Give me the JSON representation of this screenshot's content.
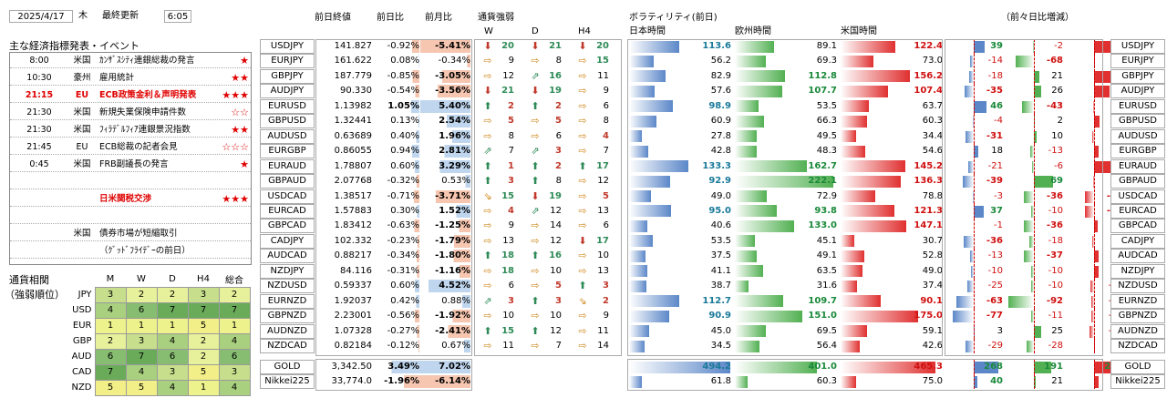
{
  "header": {
    "date": "2025/4/17",
    "weekday": "木",
    "updated_label": "最終更新",
    "time": "6:05"
  },
  "events": {
    "title": "主な経済指標発表・イベント",
    "rows": [
      {
        "time": "8:00",
        "country": "米国",
        "name": "ｶﾝｻﾞｽｼﾃｨ連銀総裁の発言",
        "stars": "★",
        "hl": false
      },
      {
        "time": "10:30",
        "country": "豪州",
        "name": "雇用統計",
        "stars": "★★",
        "hl": false
      },
      {
        "time": "21:15",
        "country": "EU",
        "name": "ECB政策金利＆声明発表",
        "stars": "★★★",
        "hl": true
      },
      {
        "time": "21:30",
        "country": "米国",
        "name": "新規失業保険申請件数",
        "stars": "☆☆",
        "hl": false
      },
      {
        "time": "21:30",
        "country": "米国",
        "name": "ﾌｨﾗﾃﾞﾙﾌｨｱ連銀景況指数",
        "stars": "★★",
        "hl": false
      },
      {
        "time": "21:45",
        "country": "EU",
        "name": "ECB総裁の記者会見",
        "stars": "☆☆☆",
        "hl": false
      },
      {
        "time": "0:45",
        "country": "米国",
        "name": "FRB副議長の発言",
        "stars": "★",
        "hl": false
      },
      {
        "time": "",
        "country": "",
        "name": "",
        "stars": "",
        "hl": false
      },
      {
        "time": "",
        "country": "",
        "name": "日米関税交渉",
        "stars": "★★★",
        "hl": true
      },
      {
        "time": "",
        "country": "",
        "name": "",
        "stars": "",
        "hl": false
      },
      {
        "time": "",
        "country": "米国",
        "name": "債券市場が短縮取引",
        "stars": "",
        "hl": false
      },
      {
        "time": "",
        "country": "",
        "name": "（ｸﾞｯﾄﾞﾌﾗｲﾃﾞｰの前日）",
        "stars": "",
        "hl": false
      }
    ]
  },
  "ranking": {
    "title1": "通貨相関",
    "title2": "（強弱順位）",
    "cols": [
      "M",
      "W",
      "D",
      "H4",
      "総合"
    ],
    "rows": [
      {
        "cur": "JPY",
        "v": [
          "3",
          "2",
          "2",
          "3",
          "2"
        ]
      },
      {
        "cur": "USD",
        "v": [
          "4",
          "6",
          "7",
          "7",
          "7"
        ]
      },
      {
        "cur": "EUR",
        "v": [
          "1",
          "1",
          "1",
          "5",
          "1"
        ]
      },
      {
        "cur": "GBP",
        "v": [
          "2",
          "3",
          "4",
          "2",
          "4"
        ]
      },
      {
        "cur": "AUD",
        "v": [
          "6",
          "7",
          "6",
          "2",
          "6"
        ]
      },
      {
        "cur": "CAD",
        "v": [
          "7",
          "4",
          "3",
          "5",
          "3"
        ]
      },
      {
        "cur": "NZD",
        "v": [
          "5",
          "5",
          "4",
          "1",
          "4"
        ]
      }
    ]
  },
  "cols": {
    "prev_close": "前日終値",
    "day_chg": "前日比",
    "month_chg": "前月比",
    "strength": "通貨強弱",
    "w": "W",
    "d": "D",
    "h4": "H4",
    "vol_title": "ボラティリティ(前日)",
    "tokyo": "日本時間",
    "europe": "欧州時間",
    "us": "米国時間",
    "diff_title": "（前々日比増減）"
  },
  "pairs": [
    {
      "name": "USDJPY",
      "close": "141.827",
      "day": "-0.92%",
      "mon": "-5.41%",
      "w": "dn",
      "wn": "20",
      "d": "dn",
      "dn": "21",
      "h4": "dn",
      "hn": "20",
      "t": "113.6",
      "e": "89.1",
      "u": "122.4",
      "dt": "39",
      "de": "-2",
      "du": "61"
    },
    {
      "name": "EURJPY",
      "close": "161.622",
      "day": "0.08%",
      "mon": "-0.34%",
      "w": "ne",
      "wn": "9",
      "d": "ne",
      "dn": "8",
      "h4": "ne",
      "hn": "15",
      "t": "56.2",
      "e": "69.3",
      "u": "73.0",
      "dt": "-14",
      "de": "-68",
      "du": "2"
    },
    {
      "name": "GBPJPY",
      "close": "187.779",
      "day": "-0.85%",
      "mon": "-3.05%",
      "w": "ne",
      "wn": "12",
      "d": "nw",
      "dn": "16",
      "h4": "ne",
      "hn": "11",
      "t": "82.9",
      "e": "112.8",
      "u": "156.2",
      "dt": "-18",
      "de": "21",
      "du": "76"
    },
    {
      "name": "AUDJPY",
      "close": "90.330",
      "day": "-0.54%",
      "mon": "-3.56%",
      "w": "dn",
      "wn": "21",
      "d": "dn",
      "dn": "19",
      "h4": "ne",
      "hn": "9",
      "t": "57.6",
      "e": "107.7",
      "u": "107.4",
      "dt": "-35",
      "de": "26",
      "du": "55"
    },
    {
      "name": "EURUSD",
      "close": "1.13982",
      "day": "1.05%",
      "mon": "5.40%",
      "w": "up",
      "wn": "2",
      "d": "up",
      "dn": "2",
      "h4": "ne",
      "hn": "6",
      "t": "98.9",
      "e": "53.5",
      "u": "63.7",
      "dt": "46",
      "de": "-43",
      "du": "-2"
    },
    {
      "name": "GBPUSD",
      "close": "1.32441",
      "day": "0.13%",
      "mon": "2.54%",
      "w": "ne",
      "wn": "5",
      "d": "ne",
      "dn": "5",
      "h4": "ne",
      "hn": "8",
      "t": "60.9",
      "e": "66.3",
      "u": "60.3",
      "dt": "-4",
      "de": "2",
      "du": "19"
    },
    {
      "name": "AUDUSD",
      "close": "0.63689",
      "day": "0.40%",
      "mon": "1.96%",
      "w": "ne",
      "wn": "8",
      "d": "ne",
      "dn": "6",
      "h4": "ne",
      "hn": "4",
      "t": "27.8",
      "e": "49.5",
      "u": "34.4",
      "dt": "-31",
      "de": "10",
      "du": "-8"
    },
    {
      "name": "EURGBP",
      "close": "0.86055",
      "day": "0.94%",
      "mon": "2.81%",
      "w": "nw",
      "wn": "7",
      "d": "nw",
      "dn": "3",
      "h4": "ne",
      "hn": "7",
      "t": "42.8",
      "e": "48.3",
      "u": "54.6",
      "dt": "18",
      "de": "-13",
      "du": "16"
    },
    {
      "name": "EURAUD",
      "close": "1.78807",
      "day": "0.60%",
      "mon": "3.29%",
      "w": "up",
      "wn": "1",
      "d": "up",
      "dn": "2",
      "h4": "up",
      "hn": "17",
      "t": "133.3",
      "e": "162.7",
      "u": "145.2",
      "dt": "-21",
      "de": "-6",
      "du": "63"
    },
    {
      "name": "GBPAUD",
      "close": "2.07768",
      "day": "-0.32%",
      "mon": "0.53%",
      "w": "up",
      "wn": "3",
      "d": "up",
      "dn": "8",
      "h4": "ne",
      "hn": "12",
      "t": "92.9",
      "e": "222.1",
      "u": "136.3",
      "dt": "-39",
      "de": "69",
      "du": "-3"
    },
    {
      "name": "USDCAD",
      "close": "1.38517",
      "day": "-0.71%",
      "mon": "-3.71%",
      "w": "se",
      "wn": "15",
      "d": "dn",
      "dn": "19",
      "h4": "ne",
      "hn": "5",
      "t": "49.0",
      "e": "72.9",
      "u": "78.8",
      "dt": "-3",
      "de": "-36",
      "du": "-32"
    },
    {
      "name": "EURCAD",
      "close": "1.57883",
      "day": "0.30%",
      "mon": "1.52%",
      "w": "ne",
      "wn": "4",
      "d": "nw",
      "dn": "12",
      "h4": "ne",
      "hn": "13",
      "t": "95.0",
      "e": "93.8",
      "u": "121.3",
      "dt": "37",
      "de": "-10",
      "du": "-34"
    },
    {
      "name": "GBPCAD",
      "close": "1.83412",
      "day": "-0.63%",
      "mon": "-1.25%",
      "w": "ne",
      "wn": "9",
      "d": "ne",
      "dn": "14",
      "h4": "ne",
      "hn": "6",
      "t": "40.6",
      "e": "133.0",
      "u": "147.1",
      "dt": "-1",
      "de": "-36",
      "du": "13"
    },
    {
      "name": "CADJPY",
      "close": "102.332",
      "day": "-0.23%",
      "mon": "-1.79%",
      "w": "ne",
      "wn": "13",
      "d": "ne",
      "dn": "12",
      "h4": "dn",
      "hn": "17",
      "t": "53.5",
      "e": "45.1",
      "u": "30.7",
      "dt": "-36",
      "de": "-18",
      "du": "-8"
    },
    {
      "name": "AUDCAD",
      "close": "0.88217",
      "day": "-0.34%",
      "mon": "-1.80%",
      "w": "up",
      "wn": "18",
      "d": "up",
      "dn": "16",
      "h4": "ne",
      "hn": "10",
      "t": "37.5",
      "e": "49.1",
      "u": "52.8",
      "dt": "-13",
      "de": "-37",
      "du": "15"
    },
    {
      "name": "NZDJPY",
      "close": "84.116",
      "day": "-0.31%",
      "mon": "-1.16%",
      "w": "ne",
      "wn": "18",
      "d": "ne",
      "dn": "10",
      "h4": "ne",
      "hn": "13",
      "t": "41.1",
      "e": "63.5",
      "u": "49.0",
      "dt": "-10",
      "de": "-10",
      "du": "17"
    },
    {
      "name": "NZDUSD",
      "close": "0.59337",
      "day": "0.60%",
      "mon": "4.52%",
      "w": "ne",
      "wn": "6",
      "d": "ne",
      "dn": "5",
      "h4": "up",
      "hn": "3",
      "t": "38.7",
      "e": "31.6",
      "u": "37.4",
      "dt": "-25",
      "de": "-10",
      "du": "-15"
    },
    {
      "name": "EURNZD",
      "close": "1.92037",
      "day": "0.42%",
      "mon": "0.88%",
      "w": "nw",
      "wn": "3",
      "d": "up",
      "dn": "3",
      "h4": "se",
      "hn": "2",
      "t": "112.7",
      "e": "109.7",
      "u": "90.1",
      "dt": "-63",
      "de": "-92",
      "du": "-11"
    },
    {
      "name": "GBPNZD",
      "close": "2.23001",
      "day": "-0.56%",
      "mon": "-1.92%",
      "w": "ne",
      "wn": "10",
      "d": "ne",
      "dn": "10",
      "h4": "ne",
      "hn": "9",
      "t": "90.9",
      "e": "151.0",
      "u": "175.0",
      "dt": "-77",
      "de": "-11",
      "du": "-10"
    },
    {
      "name": "AUDNZD",
      "close": "1.07328",
      "day": "-0.27%",
      "mon": "-2.41%",
      "w": "up",
      "wn": "15",
      "d": "up",
      "dn": "12",
      "h4": "ne",
      "hn": "11",
      "t": "45.0",
      "e": "69.5",
      "u": "59.1",
      "dt": "3",
      "de": "25",
      "du": "-16"
    },
    {
      "name": "NZDCAD",
      "close": "0.82184",
      "day": "-0.12%",
      "mon": "0.67%",
      "w": "ne",
      "wn": "11",
      "d": "ne",
      "dn": "7",
      "h4": "ne",
      "hn": "14",
      "t": "34.5",
      "e": "56.4",
      "u": "42.6",
      "dt": "-29",
      "de": "-28",
      "du": "1"
    }
  ],
  "others": [
    {
      "name": "GOLD",
      "close": "3,342.50",
      "day": "3.49%",
      "mon": "7.02%",
      "t": "494.2",
      "e": "401.0",
      "u": "465.3",
      "dt": "268",
      "de": "191",
      "du": "244"
    },
    {
      "name": "Nikkei225",
      "close": "33,774.0",
      "day": "-1.96%",
      "mon": "-6.14%",
      "t": "61.8",
      "e": "60.3",
      "u": "75.0",
      "dt": "40",
      "de": "21",
      "du": "45"
    }
  ],
  "colors": {
    "blue": "#5b87c8",
    "green": "#52b052",
    "red": "#e03030",
    "neg_bg": "#f6c6b0",
    "pos_bg": "#bfd6ee"
  }
}
